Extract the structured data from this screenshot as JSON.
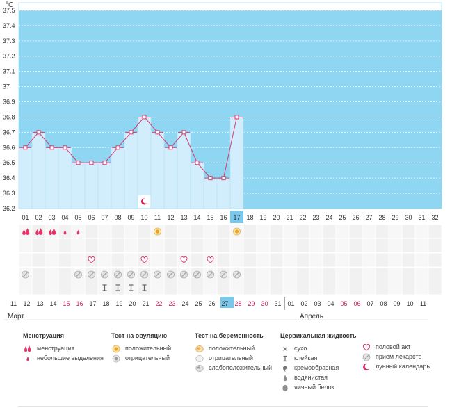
{
  "chart_data": {
    "type": "line",
    "ylabel": "°C",
    "yticks": [
      "37.5",
      "37.4",
      "37.3",
      "37.2",
      "37.1",
      "37",
      "36.9",
      "36.8",
      "36.7",
      "36.6",
      "36.5",
      "36.4",
      "36.3",
      "36.2"
    ],
    "ylim": [
      36.2,
      37.55
    ],
    "coverline": 37.5,
    "cycle_days": [
      "01",
      "02",
      "03",
      "04",
      "05",
      "06",
      "07",
      "08",
      "09",
      "10",
      "11",
      "12",
      "13",
      "14",
      "15",
      "16",
      "17",
      "18",
      "19",
      "20",
      "21",
      "22",
      "23",
      "24",
      "25",
      "26",
      "27",
      "28",
      "29",
      "30",
      "31",
      "32"
    ],
    "current_cycle_day": "17",
    "temperatures": [
      36.6,
      36.7,
      36.6,
      36.6,
      36.5,
      36.5,
      36.5,
      36.6,
      36.7,
      36.8,
      36.7,
      36.6,
      36.7,
      36.5,
      36.4,
      36.4,
      36.8
    ],
    "colors": {
      "sky": "#8fd6f2",
      "bar": "#d2eefc",
      "line": "#d6386e",
      "highlight": "#79c7ea",
      "accent": "#cc1f52"
    }
  },
  "rows": {
    "menstruation": [
      "heavy",
      "heavy",
      "heavy",
      "light",
      "light",
      "",
      "",
      "",
      "",
      "",
      "",
      "",
      "",
      "",
      "",
      "",
      ""
    ],
    "ovulation_test": [
      "",
      "",
      "",
      "",
      "",
      "",
      "",
      "",
      "",
      "",
      "positive",
      "",
      "",
      "",
      "",
      "",
      "positive"
    ],
    "intercourse": [
      "",
      "",
      "",
      "",
      "",
      "1",
      "",
      "",
      "",
      "1",
      "",
      "",
      "1",
      "",
      "1",
      "",
      ""
    ],
    "medication": [
      "1",
      "",
      "",
      "",
      "1",
      "1",
      "1",
      "1",
      "1",
      "1",
      "1",
      "1",
      "1",
      "1",
      "1",
      "1",
      "1"
    ],
    "cervical_fluid": [
      "",
      "",
      "",
      "",
      "",
      "",
      "sticky",
      "sticky",
      "sticky",
      "sticky",
      "",
      "",
      "",
      "",
      "",
      "",
      ""
    ],
    "moon_day": "10"
  },
  "dates": {
    "labels": [
      "11",
      "12",
      "13",
      "14",
      "15",
      "16",
      "17",
      "18",
      "19",
      "20",
      "21",
      "22",
      "23",
      "24",
      "25",
      "26",
      "27",
      "28",
      "29",
      "30",
      "31",
      "01",
      "02",
      "03",
      "04",
      "05",
      "06",
      "07",
      "08",
      "09",
      "10",
      "11"
    ],
    "red_indices": [
      4,
      5,
      11,
      12,
      17,
      18,
      19,
      25,
      26
    ],
    "highlight_index": 16,
    "month1": "Март",
    "month2": "Апрель"
  },
  "legend": {
    "menstruation": {
      "title": "Менструация",
      "items": [
        "менструация",
        "небольшие выделения"
      ]
    },
    "ovulation": {
      "title": "Тест на овуляцию",
      "items": [
        "положительный",
        "отрицательный"
      ]
    },
    "pregnancy": {
      "title": "Тест на беременность",
      "items": [
        "положительный",
        "отрицательный",
        "слабоположительный"
      ]
    },
    "fluid": {
      "title": "Цервикальная жидкость",
      "items": [
        "сухо",
        "клейкая",
        "кремообразная",
        "водянистая",
        "яичный белок"
      ]
    },
    "other": {
      "items": [
        "половой акт",
        "прием лекарств",
        "лунный календарь"
      ]
    }
  }
}
